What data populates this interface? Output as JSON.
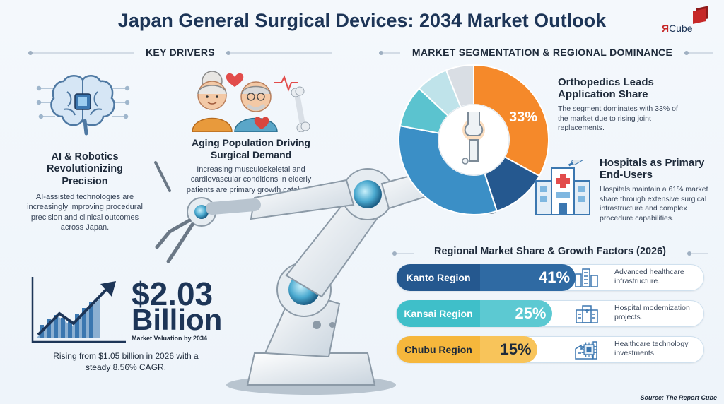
{
  "title": "Japan General Surgical Devices: 2034 Market Outlook",
  "logo": {
    "mark": "Я",
    "text": "Cube"
  },
  "key_drivers": {
    "heading": "KEY DRIVERS",
    "ai": {
      "title": "AI & Robotics Revolutionizing Precision",
      "body": "AI-assisted technologies are increasingly improving procedural precision and clinical outcomes across Japan."
    },
    "aging": {
      "title": "Aging Population Driving Surgical Demand",
      "body": "Increasing musculoskeletal and cardiovascular conditions in elderly patients are primary growth catalysts."
    }
  },
  "valuation": {
    "amount": "$2.03",
    "unit": "Billion",
    "caption": "Market Valuation by 2034",
    "rise": "Rising from $1.05 billion in 2026 with a steady 8.56% CAGR."
  },
  "segmentation": {
    "heading": "MARKET SEGMENTATION & REGIONAL DOMINANCE",
    "donut_label": "33%",
    "donut_segments": [
      {
        "share": 33,
        "color": "#f5892a"
      },
      {
        "share": 12,
        "color": "#25588f"
      },
      {
        "share": 33,
        "color": "#3b8fc6"
      },
      {
        "share": 9,
        "color": "#5bc3cf"
      },
      {
        "share": 7,
        "color": "#bfe3ea"
      },
      {
        "share": 6,
        "color": "#d9dee4"
      }
    ],
    "ortho": {
      "title": "Orthopedics Leads Application Share",
      "body": "The segment dominates with 33% of the market due to rising joint replacements."
    },
    "hospitals": {
      "title": "Hospitals as Primary End-Users",
      "body": "Hospitals maintain a 61% market share through extensive surgical infrastructure and complex procedure capabilities."
    }
  },
  "regional": {
    "heading": "Regional Market Share & Growth Factors (2026)",
    "rows": [
      {
        "name": "Kanto Region",
        "pct": "41%",
        "share": 41,
        "desc": "Advanced healthcare infrastructure.",
        "name_bg": "#25588f",
        "name_fg": "#ffffff",
        "bar_bg": "#2f6aa3",
        "bar_fg": "#ffffff"
      },
      {
        "name": "Kansai Region",
        "pct": "25%",
        "share": 25,
        "desc": "Hospital modernization projects.",
        "name_bg": "#3fbfc9",
        "name_fg": "#ffffff",
        "bar_bg": "#5cc9d2",
        "bar_fg": "#ffffff"
      },
      {
        "name": "Chubu Region",
        "pct": "15%",
        "share": 15,
        "desc": "Healthcare technology investments.",
        "name_bg": "#f6b73c",
        "name_fg": "#1e2a3a",
        "bar_bg": "#f8c45a",
        "bar_fg": "#1e2a3a"
      }
    ]
  },
  "source": "Source: The Report Cube"
}
